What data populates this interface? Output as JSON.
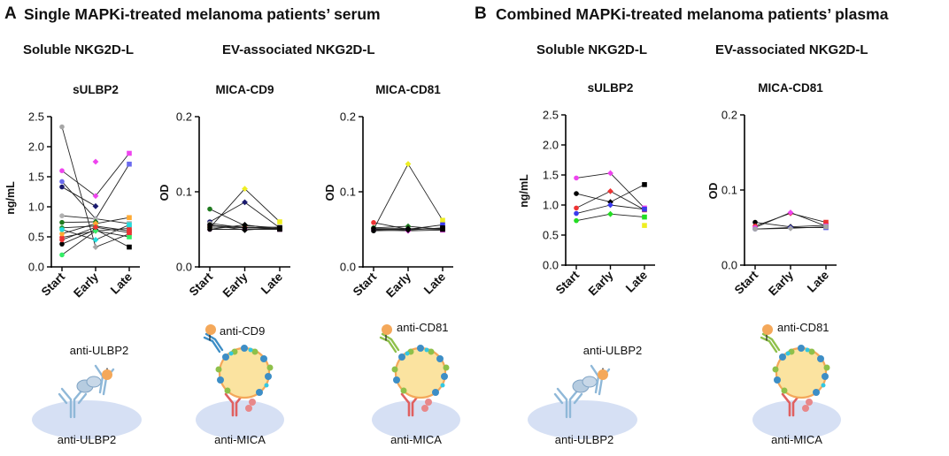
{
  "panels": {
    "A": {
      "letter": "A",
      "title": "Single MAPKi-treated melanoma patients’ serum",
      "soluble_heading": "Soluble  NKG2D-L",
      "ev_heading": "EV-associated  NKG2D-L"
    },
    "B": {
      "letter": "B",
      "title": "Combined MAPKi-treated melanoma patients’ plasma",
      "soluble_heading": "Soluble  NKG2D-L",
      "ev_heading": "EV-associated  NKG2D-L"
    }
  },
  "assay_labels": {
    "a_sulbp2": {
      "top": "anti-ULBP2",
      "bottom": "anti-ULBP2"
    },
    "a_cd9": {
      "top": "anti-CD9",
      "bottom": "anti-MICA"
    },
    "a_cd81": {
      "top": "anti-CD81",
      "bottom": "anti-MICA"
    },
    "b_sulbp2": {
      "top": "anti-ULBP2",
      "bottom": "anti-ULBP2"
    },
    "b_cd81": {
      "top": "anti-CD81",
      "bottom": "anti-MICA"
    }
  },
  "colors": {
    "axis": "#000000",
    "line": "#222222",
    "ev_orange": "#f4a85a",
    "ev_fill": "#fbe3a0",
    "cd9_blue": "#3d8ec6",
    "cd81_green": "#8fc04a",
    "mica_red": "#e06060",
    "ulbp2_blue": "#8fb8d8",
    "well": "#d6e0f4"
  },
  "chart_data": [
    {
      "id": "a_sulbp2",
      "type": "scatter",
      "title": "sULBP2",
      "ylabel": "ng/mL",
      "categories": [
        "Start",
        "Early",
        "Late"
      ],
      "ylim": [
        0,
        2.5
      ],
      "yticks": [
        "0.0",
        "0.5",
        "1.0",
        "1.5",
        "2.0",
        "2.5"
      ],
      "series": [
        {
          "color": "#a6a6a6",
          "values": [
            2.33,
            0.33,
            0.55
          ]
        },
        {
          "color": "#ee44ee",
          "values": [
            1.6,
            1.18,
            1.89
          ]
        },
        {
          "color": "#6a6aee",
          "values": [
            1.42,
            0.8,
            1.71
          ]
        },
        {
          "color": "#1a1a6e",
          "values": [
            1.33,
            1.01,
            null
          ]
        },
        {
          "color": "#ee44ee",
          "values": [
            null,
            1.75,
            null
          ]
        },
        {
          "color": "#b0b0b0",
          "values": [
            0.85,
            0.8,
            0.72
          ]
        },
        {
          "color": "#1f7a1f",
          "values": [
            0.74,
            0.75,
            null
          ]
        },
        {
          "color": "#2a9a3a",
          "values": [
            0.65,
            0.68,
            0.6
          ]
        },
        {
          "color": "#ee3333",
          "values": [
            0.49,
            0.6,
            0.64
          ]
        },
        {
          "color": "#000000",
          "values": [
            0.38,
            0.62,
            0.33
          ]
        },
        {
          "color": "#ffaa33",
          "values": [
            0.55,
            0.72,
            0.82
          ]
        },
        {
          "color": "#22dddd",
          "values": [
            0.62,
            0.45,
            0.7
          ]
        },
        {
          "color": "#33ee66",
          "values": [
            0.2,
            0.6,
            0.5
          ]
        },
        {
          "color": "#ee3333",
          "values": [
            0.45,
            0.66,
            0.57
          ]
        }
      ]
    },
    {
      "id": "a_cd9",
      "type": "scatter",
      "title": "MICA-CD9",
      "ylabel": "OD",
      "categories": [
        "Start",
        "Early",
        "Late"
      ],
      "ylim": [
        0,
        0.2
      ],
      "yticks": [
        "0.0",
        "0.1",
        "0.2"
      ],
      "series": [
        {
          "color": "#1f7a1f",
          "values": [
            0.077,
            0.055,
            0.052
          ]
        },
        {
          "color": "#1a1a6e",
          "values": [
            0.06,
            0.086,
            0.052
          ]
        },
        {
          "color": "#eeee22",
          "values": [
            0.052,
            0.104,
            0.06
          ]
        },
        {
          "color": "#ee3333",
          "values": [
            0.055,
            0.053,
            0.051
          ]
        },
        {
          "color": "#ee44ee",
          "values": [
            0.05,
            0.05,
            0.05
          ]
        },
        {
          "color": "#a6a6a6",
          "values": [
            0.058,
            0.052,
            0.053
          ]
        },
        {
          "color": "#000000",
          "values": [
            0.053,
            0.052,
            0.051
          ]
        },
        {
          "color": "#000000",
          "values": [
            0.05,
            0.056,
            0.05
          ]
        },
        {
          "color": "#000000",
          "values": [
            0.056,
            0.049,
            0.052
          ]
        }
      ]
    },
    {
      "id": "a_cd81",
      "type": "scatter",
      "title": "MICA-CD81",
      "ylabel": "OD",
      "categories": [
        "Start",
        "Early",
        "Late"
      ],
      "ylim": [
        0,
        0.2
      ],
      "yticks": [
        "0.0",
        "0.1",
        "0.2"
      ],
      "series": [
        {
          "color": "#eeee22",
          "values": [
            0.05,
            0.137,
            0.062
          ]
        },
        {
          "color": "#ee3333",
          "values": [
            0.059,
            0.05,
            0.051
          ]
        },
        {
          "color": "#1f7a1f",
          "values": [
            0.052,
            0.054,
            0.05
          ]
        },
        {
          "color": "#3a3aee",
          "values": [
            0.05,
            0.05,
            0.056
          ]
        },
        {
          "color": "#ee44ee",
          "values": [
            0.049,
            0.048,
            0.049
          ]
        },
        {
          "color": "#000000",
          "values": [
            0.051,
            0.051,
            0.05
          ]
        },
        {
          "color": "#000000",
          "values": [
            0.048,
            0.049,
            0.052
          ]
        }
      ]
    },
    {
      "id": "b_sulbp2",
      "type": "scatter",
      "title": "sULBP2",
      "ylabel": "ng/mL",
      "categories": [
        "Start",
        "Early",
        "Late"
      ],
      "ylim": [
        0,
        2.5
      ],
      "yticks": [
        "0.0",
        "0.5",
        "1.0",
        "1.5",
        "2.0",
        "2.5"
      ],
      "series": [
        {
          "color": "#ee44ee",
          "values": [
            1.45,
            1.53,
            0.95
          ]
        },
        {
          "color": "#000000",
          "values": [
            1.19,
            1.05,
            1.34
          ]
        },
        {
          "color": "#ee3333",
          "values": [
            0.95,
            1.23,
            0.92
          ]
        },
        {
          "color": "#3a3aee",
          "values": [
            0.86,
            1.0,
            0.93
          ]
        },
        {
          "color": "#22dd22",
          "values": [
            0.74,
            0.85,
            0.8
          ]
        },
        {
          "color": "#eeee22",
          "values": [
            null,
            null,
            0.66
          ]
        }
      ]
    },
    {
      "id": "b_cd81",
      "type": "scatter",
      "title": "MICA-CD81",
      "ylabel": "OD",
      "categories": [
        "Start",
        "Early",
        "Late"
      ],
      "ylim": [
        0,
        0.2
      ],
      "yticks": [
        "0.0",
        "0.1",
        "0.2"
      ],
      "series": [
        {
          "color": "#000000",
          "values": [
            0.057,
            0.051,
            0.053
          ]
        },
        {
          "color": "#ee3333",
          "values": [
            0.052,
            0.069,
            0.057
          ]
        },
        {
          "color": "#ee44ee",
          "values": [
            0.05,
            0.07,
            0.052
          ]
        },
        {
          "color": "#3a3aee",
          "values": [
            0.048,
            0.05,
            0.05
          ]
        },
        {
          "color": "#a6a6a6",
          "values": [
            0.048,
            0.049,
            0.051
          ]
        }
      ]
    }
  ]
}
